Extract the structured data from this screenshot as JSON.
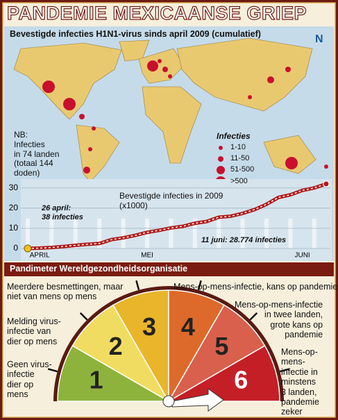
{
  "title": "PANDEMIE MEXICAANSE GRIEP",
  "logo": "N",
  "map": {
    "subtitle": "Bevestigde infecties H1N1-virus sinds april 2009 (cumulatief)",
    "note": "NB:\nInfecties\nin 74 landen\n(totaal 144\ndoden)",
    "legend": {
      "title": "Infecties",
      "items": [
        "1-10",
        "11-50",
        "51-500",
        ">500"
      ]
    }
  },
  "chart_data": {
    "type": "line",
    "title": "Bevestigde infecties in 2009\n(x1000)",
    "categories": [
      null,
      "APRIL",
      null,
      null,
      null,
      null,
      null,
      null,
      null,
      null,
      "MEI",
      null,
      null,
      null,
      null,
      null,
      null,
      null,
      null,
      null,
      null,
      null,
      null,
      "JUNI",
      null,
      null
    ],
    "series": [
      {
        "color": "#b01818",
        "values": [
          0.038,
          0.2,
          0.5,
          1.0,
          1.6,
          2.1,
          2.5,
          4.4,
          5.3,
          6.5,
          8.0,
          9.0,
          10.2,
          11.0,
          12.5,
          13.4,
          15.5,
          16.0,
          17.4,
          19.3,
          21.9,
          25.3,
          26.6,
          28.774,
          30.0,
          32.0
        ]
      }
    ],
    "ylim": [
      0,
      33
    ],
    "yticks": [
      0,
      10,
      20,
      30
    ],
    "grid": true,
    "annotations": [
      "26 april:\n38 infecties",
      "11 juni: 28.774 infecties"
    ]
  },
  "pandimeter": {
    "title": "Pandimeter Wereldgezondheidsorganisatie",
    "phases": [
      {
        "number": 1,
        "color": "#8db33c",
        "text": "Geen virus-\ninfectie\ndier op\nmens"
      },
      {
        "number": 2,
        "color": "#f1dc62",
        "text": "Melding virus-\ninfectie van\ndier op mens"
      },
      {
        "number": 3,
        "color": "#e9b52a",
        "text": "Meerdere besmettingen, maar\nniet van mens op mens"
      },
      {
        "number": 4,
        "color": "#dd6a2a",
        "text": "Mens-op-mens-infectie, kans op pandemie"
      },
      {
        "number": 5,
        "color": "#d9604c",
        "text": "Mens-op-mens-infectie\nin twee landen,\ngrote kans op\npandemie"
      },
      {
        "number": 6,
        "color": "#c41f26",
        "text": "Mens-op-mens-\ninfectie in\nminstens\n3 landen,\npandemie\nzeker"
      }
    ]
  }
}
